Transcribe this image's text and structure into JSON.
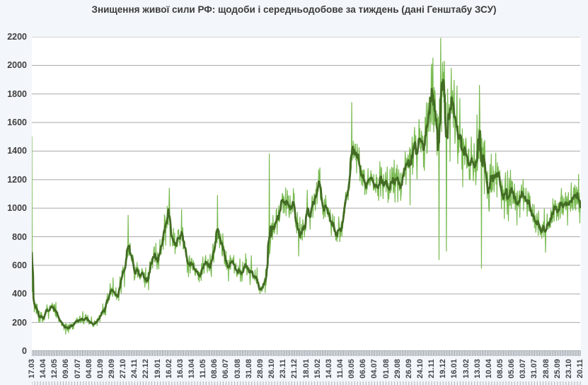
{
  "title": "Знищення живої сили РФ: щодоби і середньодобове за тиждень (дані Генштабу ЗСУ)",
  "colors": {
    "background": "#f3f6fa",
    "plot_background": "#ffffff",
    "grid": "#a9a9a9",
    "axis_line": "#8f979e",
    "axis_text": "#3f3f3f",
    "title_text": "#3b3b3b",
    "daily_line": "#78ba50",
    "weekly_line": "#436c25"
  },
  "chart_data": {
    "type": "line",
    "title": "Знищення живої сили РФ: щодоби і середньодобове за тиждень (дані Генштабу ЗСУ)",
    "grid": true,
    "legend": "none",
    "total_days": 1344,
    "y_axis": {
      "min": 0,
      "max": 2200,
      "step": 200,
      "tick_labels": [
        "0",
        "200",
        "400",
        "600",
        "800",
        "1000",
        "1200",
        "1400",
        "1600",
        "1800",
        "2000",
        "2200"
      ]
    },
    "x_axis": {
      "tick_interval_days": 28,
      "minor_tick_interval_days": 4,
      "edge_tick_interval_days": 7,
      "tick_labels": [
        "17.03",
        "14.04",
        "12.05",
        "09.06",
        "07.07",
        "04.08",
        "01.09",
        "29.09",
        "27.10",
        "24.11",
        "22.12",
        "19.01",
        "16.02",
        "16.03",
        "13.04",
        "11.05",
        "08.06",
        "06.07",
        "03.08",
        "31.08",
        "28.09",
        "26.10",
        "23.11",
        "21.12",
        "18.01",
        "15.02",
        "14.03",
        "11.04",
        "09.05",
        "06.06",
        "04.07",
        "01.08",
        "29.08",
        "26.09",
        "24.10",
        "21.11",
        "19.12",
        "16.01",
        "13.02",
        "13.03",
        "10.04",
        "08.05",
        "05.06",
        "03.07",
        "31.07",
        "28.08",
        "25.09",
        "23.10",
        "20.11"
      ]
    },
    "series": [
      {
        "name": "щодоби",
        "role": "daily",
        "color": "#78ba50"
      },
      {
        "name": "середньодобове за тиждень",
        "role": "weekly-average",
        "color": "#436c25"
      }
    ],
    "weekly_average_points": [
      [
        0,
        430
      ],
      [
        8,
        310
      ],
      [
        26,
        235
      ],
      [
        43,
        310
      ],
      [
        55,
        295
      ],
      [
        78,
        175
      ],
      [
        100,
        165
      ],
      [
        110,
        200
      ],
      [
        122,
        230
      ],
      [
        136,
        225
      ],
      [
        152,
        185
      ],
      [
        165,
        230
      ],
      [
        180,
        300
      ],
      [
        198,
        430
      ],
      [
        210,
        365
      ],
      [
        226,
        560
      ],
      [
        236,
        720
      ],
      [
        244,
        690
      ],
      [
        252,
        565
      ],
      [
        262,
        540
      ],
      [
        270,
        530
      ],
      [
        281,
        480
      ],
      [
        298,
        655
      ],
      [
        308,
        615
      ],
      [
        330,
        890
      ],
      [
        340,
        905
      ],
      [
        350,
        745
      ],
      [
        365,
        855
      ],
      [
        378,
        690
      ],
      [
        390,
        600
      ],
      [
        402,
        560
      ],
      [
        412,
        525
      ],
      [
        425,
        615
      ],
      [
        438,
        565
      ],
      [
        452,
        800
      ],
      [
        462,
        790
      ],
      [
        480,
        595
      ],
      [
        495,
        620
      ],
      [
        513,
        530
      ],
      [
        528,
        600
      ],
      [
        543,
        550
      ],
      [
        560,
        430
      ],
      [
        572,
        460
      ],
      [
        585,
        800
      ],
      [
        600,
        900
      ],
      [
        612,
        1010
      ],
      [
        622,
        1050
      ],
      [
        632,
        975
      ],
      [
        642,
        1060
      ],
      [
        652,
        860
      ],
      [
        662,
        780
      ],
      [
        673,
        950
      ],
      [
        690,
        1000
      ],
      [
        703,
        1145
      ],
      [
        715,
        1000
      ],
      [
        730,
        955
      ],
      [
        745,
        800
      ],
      [
        757,
        830
      ],
      [
        775,
        1100
      ],
      [
        788,
        1435
      ],
      [
        800,
        1330
      ],
      [
        810,
        1250
      ],
      [
        818,
        1170
      ],
      [
        830,
        1210
      ],
      [
        845,
        1130
      ],
      [
        858,
        1185
      ],
      [
        870,
        1130
      ],
      [
        885,
        1180
      ],
      [
        900,
        1150
      ],
      [
        915,
        1265
      ],
      [
        928,
        1300
      ],
      [
        950,
        1465
      ],
      [
        962,
        1500
      ],
      [
        978,
        1775
      ],
      [
        988,
        1610
      ],
      [
        996,
        1450
      ],
      [
        1006,
        1805
      ],
      [
        1020,
        1590
      ],
      [
        1028,
        1700
      ],
      [
        1040,
        1550
      ],
      [
        1048,
        1510
      ],
      [
        1057,
        1390
      ],
      [
        1066,
        1310
      ],
      [
        1077,
        1215
      ],
      [
        1086,
        1300
      ],
      [
        1099,
        1515
      ],
      [
        1110,
        1380
      ],
      [
        1120,
        1090
      ],
      [
        1135,
        1265
      ],
      [
        1148,
        1140
      ],
      [
        1155,
        1080
      ],
      [
        1165,
        1145
      ],
      [
        1178,
        1160
      ],
      [
        1190,
        1050
      ],
      [
        1205,
        1110
      ],
      [
        1218,
        1010
      ],
      [
        1232,
        950
      ],
      [
        1247,
        830
      ],
      [
        1255,
        815
      ],
      [
        1270,
        910
      ],
      [
        1280,
        980
      ],
      [
        1295,
        1010
      ],
      [
        1305,
        955
      ],
      [
        1320,
        1030
      ],
      [
        1335,
        1090
      ],
      [
        1344,
        1005
      ]
    ],
    "daily_extremes": [
      [
        0,
        1500
      ],
      [
        236,
        950
      ],
      [
        337,
        1140
      ],
      [
        455,
        1090
      ],
      [
        582,
        1380
      ],
      [
        703,
        1270
      ],
      [
        784,
        1740
      ],
      [
        980,
        2010
      ],
      [
        998,
        640
      ],
      [
        1002,
        2190
      ],
      [
        1011,
        2030
      ],
      [
        1016,
        700
      ],
      [
        1097,
        1860
      ],
      [
        1102,
        580
      ]
    ],
    "daily_noise_band_pct_anchors": [
      [
        0,
        0.2
      ],
      [
        150,
        0.18
      ],
      [
        300,
        0.13
      ],
      [
        550,
        0.12
      ],
      [
        700,
        0.12
      ],
      [
        820,
        0.1
      ],
      [
        900,
        0.13
      ],
      [
        950,
        0.16
      ],
      [
        1050,
        0.17
      ],
      [
        1120,
        0.15
      ],
      [
        1200,
        0.13
      ],
      [
        1344,
        0.12
      ]
    ]
  }
}
